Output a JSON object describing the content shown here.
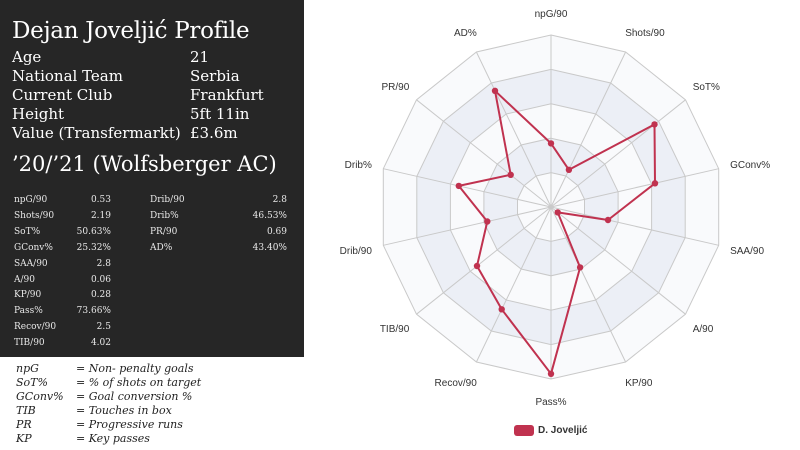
{
  "profile": {
    "title": "Dejan Joveljić Profile",
    "info": [
      {
        "label": "Age",
        "value": "21"
      },
      {
        "label": "National Team",
        "value": "Serbia"
      },
      {
        "label": "Current Club",
        "value": "Frankfurt"
      },
      {
        "label": "Height",
        "value": "5ft 11in"
      },
      {
        "label": "Value (Transfermarkt)",
        "value": "£3.6m"
      }
    ],
    "season": "’20/’21 (Wolfsberger AC)",
    "stats_left": [
      {
        "label": "npG/90",
        "value": "0.53"
      },
      {
        "label": "Shots/90",
        "value": "2.19"
      },
      {
        "label": "SoT%",
        "value": "50.63%"
      },
      {
        "label": "GConv%",
        "value": "25.32%"
      },
      {
        "label": "SAA/90",
        "value": "2.8"
      },
      {
        "label": "A/90",
        "value": "0.06"
      },
      {
        "label": "KP/90",
        "value": "0.28"
      },
      {
        "label": "Pass%",
        "value": "73.66%"
      },
      {
        "label": "Recov/90",
        "value": "2.5"
      },
      {
        "label": "TIB/90",
        "value": "4.02"
      }
    ],
    "stats_right": [
      {
        "label": "Drib/90",
        "value": "2.8"
      },
      {
        "label": "Drib%",
        "value": "46.53%"
      },
      {
        "label": "PR/90",
        "value": "0.69"
      },
      {
        "label": "AD%",
        "value": "43.40%"
      }
    ]
  },
  "glossary": [
    {
      "abbr": "npG",
      "def": "= Non- penalty goals"
    },
    {
      "abbr": "SoT%",
      "def": "= % of shots on target"
    },
    {
      "abbr": "GConv%",
      "def": "= Goal conversion %"
    },
    {
      "abbr": "TIB",
      "def": "= Touches in box"
    },
    {
      "abbr": "PR",
      "def": "= Progressive runs"
    },
    {
      "abbr": "KP",
      "def": "= Key passes"
    }
  ],
  "chart_data": {
    "type": "radar",
    "axes": [
      "npG/90",
      "Shots/90",
      "SoT%",
      "GConv%",
      "SAA/90",
      "A/90",
      "KP/90",
      "Pass%",
      "Recov/90",
      "TIB/90",
      "Drib/90",
      "Drib%",
      "PR/90",
      "AD%"
    ],
    "rmax": 100,
    "rings": 5,
    "series": [
      {
        "name": "D. Joveljić",
        "color": "#c0324f",
        "values": [
          37,
          24,
          77,
          62,
          34,
          5,
          39,
          97,
          66,
          55,
          38,
          55,
          30,
          75
        ]
      }
    ],
    "legend": "bottom-center"
  }
}
